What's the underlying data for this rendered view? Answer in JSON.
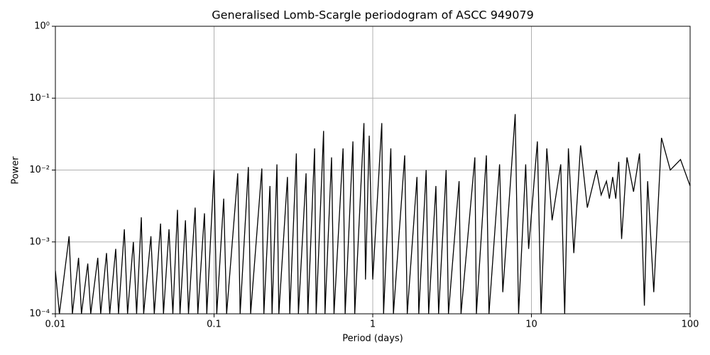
{
  "chart_data": {
    "type": "line",
    "title": "Generalised Lomb-Scargle periodogram of ASCC 949079",
    "x_label": "Period (days)",
    "y_label": "Power",
    "x_log": true,
    "y_log": true,
    "grid": true,
    "color": "#000000",
    "xlim": [
      0.01,
      100
    ],
    "ylim": [
      0.0001,
      1
    ],
    "xticks": [
      0.01,
      0.1,
      1,
      10,
      100
    ],
    "yticks": [
      {
        "value": 0.0001,
        "label": "10⁻⁴"
      },
      {
        "value": 0.001,
        "label": "10⁻³"
      },
      {
        "value": 0.01,
        "label": "10⁻²"
      },
      {
        "value": 0.1,
        "label": "10⁻¹"
      },
      {
        "value": 1,
        "label": "10⁰"
      }
    ],
    "x": [
      0.01,
      0.0106,
      0.0122,
      0.0128,
      0.014,
      0.0146,
      0.016,
      0.0167,
      0.0185,
      0.0193,
      0.021,
      0.022,
      0.024,
      0.025,
      0.0272,
      0.0285,
      0.031,
      0.0325,
      0.0348,
      0.036,
      0.04,
      0.042,
      0.046,
      0.048,
      0.052,
      0.055,
      0.0588,
      0.061,
      0.066,
      0.069,
      0.076,
      0.079,
      0.087,
      0.09,
      0.1,
      0.104,
      0.115,
      0.12,
      0.141,
      0.146,
      0.1645,
      0.17,
      0.2,
      0.206,
      0.225,
      0.232,
      0.249,
      0.256,
      0.29,
      0.3,
      0.33,
      0.34,
      0.38,
      0.39,
      0.43,
      0.44,
      0.49,
      0.5,
      0.55,
      0.57,
      0.65,
      0.67,
      0.75,
      0.77,
      0.88,
      0.9,
      0.95,
      1.0,
      1.14,
      1.17,
      1.3,
      1.35,
      1.59,
      1.65,
      1.9,
      1.95,
      2.17,
      2.25,
      2.5,
      2.6,
      2.9,
      3.0,
      3.5,
      3.6,
      4.4,
      4.5,
      5.2,
      5.4,
      6.3,
      6.6,
      7.9,
      8.3,
      9.2,
      9.6,
      10.9,
      11.5,
      12.5,
      13.5,
      15.3,
      16.2,
      17.1,
      18.5,
      20.4,
      22.5,
      25.7,
      27.5,
      29.7,
      31,
      32.5,
      34,
      35.5,
      37,
      40,
      44,
      48,
      51.5,
      54,
      59,
      66,
      75,
      87,
      100
    ],
    "values": [
      0.0004,
      0.0001,
      0.0012,
      0.0001,
      0.0006,
      0.0001,
      0.0005,
      0.0001,
      0.0006,
      0.0001,
      0.0007,
      0.0001,
      0.0008,
      0.0001,
      0.0015,
      0.0001,
      0.001,
      0.0001,
      0.0022,
      0.0001,
      0.0012,
      0.0001,
      0.0018,
      0.0001,
      0.0015,
      0.0001,
      0.0028,
      0.0001,
      0.002,
      0.0001,
      0.003,
      0.0001,
      0.0025,
      0.0001,
      0.01,
      0.0001,
      0.004,
      0.0001,
      0.009,
      0.0001,
      0.011,
      0.0001,
      0.0105,
      0.0001,
      0.006,
      0.0001,
      0.012,
      0.0001,
      0.008,
      0.0001,
      0.017,
      0.0001,
      0.009,
      0.0001,
      0.02,
      0.0001,
      0.035,
      0.0001,
      0.015,
      0.0001,
      0.02,
      0.0001,
      0.025,
      0.0001,
      0.045,
      0.0003,
      0.03,
      0.0003,
      0.045,
      0.0001,
      0.02,
      0.0001,
      0.016,
      0.0001,
      0.008,
      0.0001,
      0.01,
      0.0001,
      0.006,
      0.0001,
      0.01,
      0.0001,
      0.007,
      0.0001,
      0.015,
      0.0001,
      0.016,
      0.0001,
      0.012,
      0.0002,
      0.06,
      0.0001,
      0.012,
      0.0008,
      0.025,
      0.0001,
      0.02,
      0.002,
      0.012,
      0.0001,
      0.02,
      0.0007,
      0.022,
      0.003,
      0.01,
      0.0045,
      0.007,
      0.004,
      0.008,
      0.004,
      0.013,
      0.0011,
      0.015,
      0.005,
      0.017,
      0.00013,
      0.007,
      0.0002,
      0.028,
      0.01,
      0.014,
      0.006
    ]
  }
}
